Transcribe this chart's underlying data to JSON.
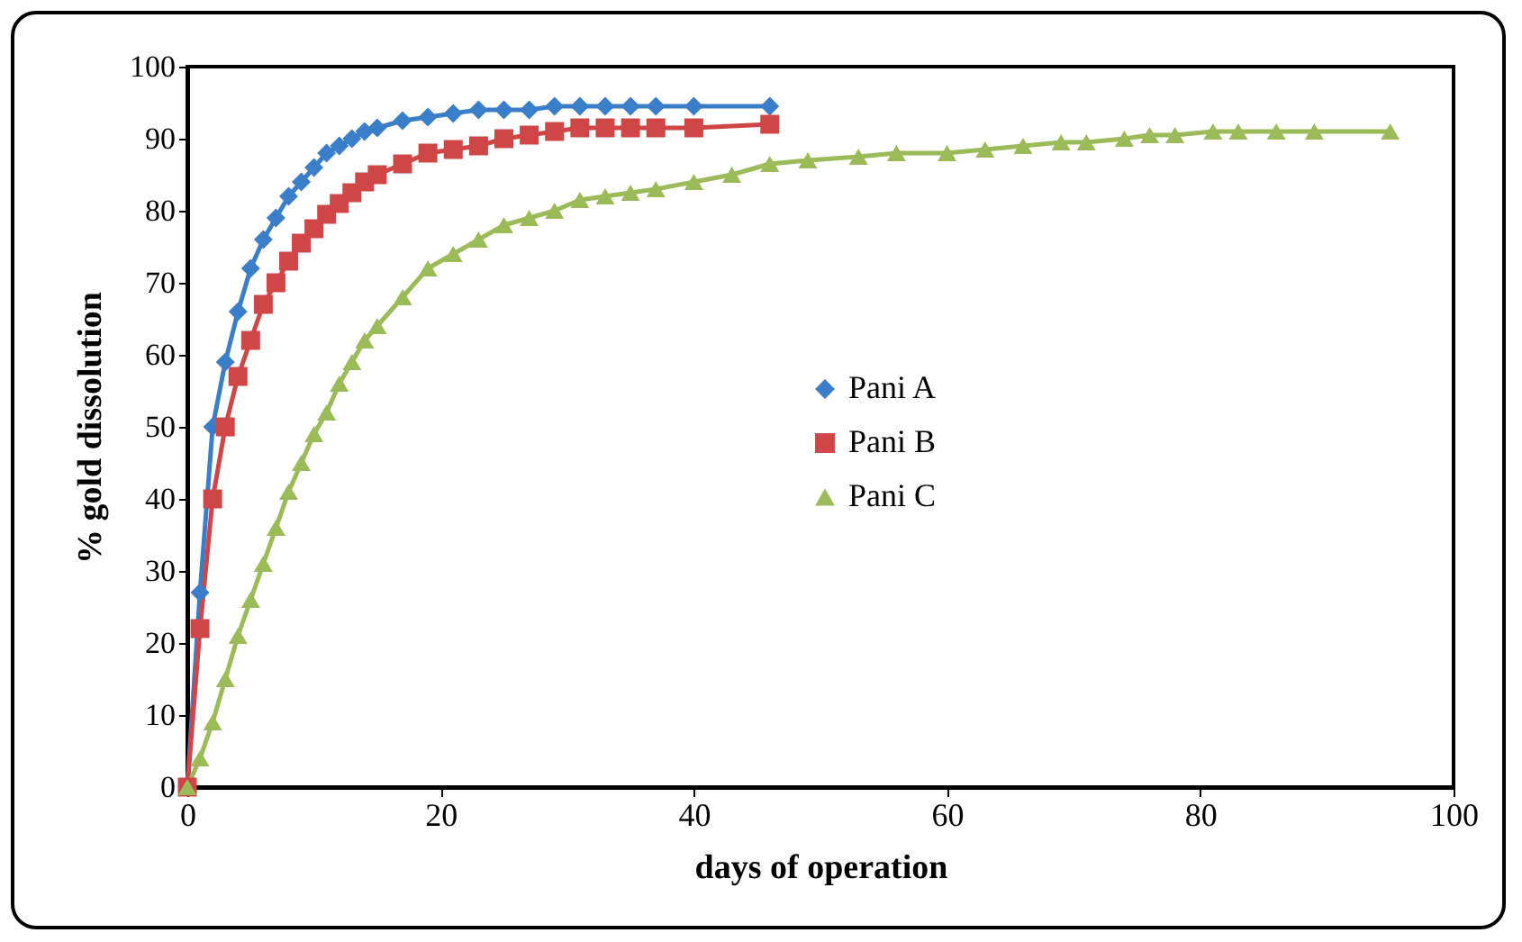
{
  "chart_data": {
    "type": "line",
    "xlabel": "days of operation",
    "ylabel": "% gold dissolution",
    "xlim": [
      0,
      100
    ],
    "xticks": [
      0,
      20,
      40,
      60,
      80,
      100
    ],
    "ylim": [
      0,
      100
    ],
    "yticks": [
      0,
      10,
      20,
      30,
      40,
      50,
      60,
      70,
      80,
      90,
      100
    ],
    "grid": false,
    "legend": "right",
    "line_style": "solid",
    "series": [
      {
        "name": "Pani  A",
        "color": "#3a7dc9",
        "marker": "diamond",
        "x": [
          0,
          1,
          2,
          3,
          4,
          5,
          6,
          7,
          8,
          9,
          10,
          11,
          12,
          13,
          14,
          15,
          17,
          19,
          21,
          23,
          25,
          27,
          29,
          31,
          33,
          35,
          37,
          40,
          46
        ],
        "values": [
          0,
          27,
          50,
          59,
          66,
          72,
          76,
          79,
          82,
          84,
          86,
          88,
          89,
          90,
          91,
          91.5,
          92.5,
          93,
          93.5,
          94,
          94,
          94,
          94.5,
          94.5,
          94.5,
          94.5,
          94.5,
          94.5,
          94.5
        ]
      },
      {
        "name": "Pani  B",
        "color": "#d04545",
        "marker": "square",
        "x": [
          0,
          1,
          2,
          3,
          4,
          5,
          6,
          7,
          8,
          9,
          10,
          11,
          12,
          13,
          14,
          15,
          17,
          19,
          21,
          23,
          25,
          27,
          29,
          31,
          33,
          35,
          37,
          40,
          46
        ],
        "values": [
          0,
          22,
          40,
          50,
          57,
          62,
          67,
          70,
          73,
          75.5,
          77.5,
          79.5,
          81,
          82.5,
          84,
          85,
          86.5,
          88,
          88.5,
          89,
          90,
          90.5,
          91,
          91.5,
          91.5,
          91.5,
          91.5,
          91.5,
          92
        ]
      },
      {
        "name": "Pani  C",
        "color": "#9bbb59",
        "marker": "triangle",
        "x": [
          0,
          1,
          2,
          3,
          4,
          5,
          6,
          7,
          8,
          9,
          10,
          11,
          12,
          13,
          14,
          15,
          17,
          19,
          21,
          23,
          25,
          27,
          29,
          31,
          33,
          35,
          37,
          40,
          43,
          46,
          49,
          53,
          56,
          60,
          63,
          66,
          69,
          71,
          74,
          76,
          78,
          81,
          83,
          86,
          89,
          95
        ],
        "values": [
          0,
          4,
          9,
          15,
          21,
          26,
          31,
          36,
          41,
          45,
          49,
          52,
          56,
          59,
          62,
          64,
          68,
          72,
          74,
          76,
          78,
          79,
          80,
          81.5,
          82,
          82.5,
          83,
          84,
          85,
          86.5,
          87,
          87.5,
          88,
          88,
          88.5,
          89,
          89.5,
          89.5,
          90,
          90.5,
          90.5,
          91,
          91,
          91,
          91,
          91
        ]
      }
    ]
  }
}
